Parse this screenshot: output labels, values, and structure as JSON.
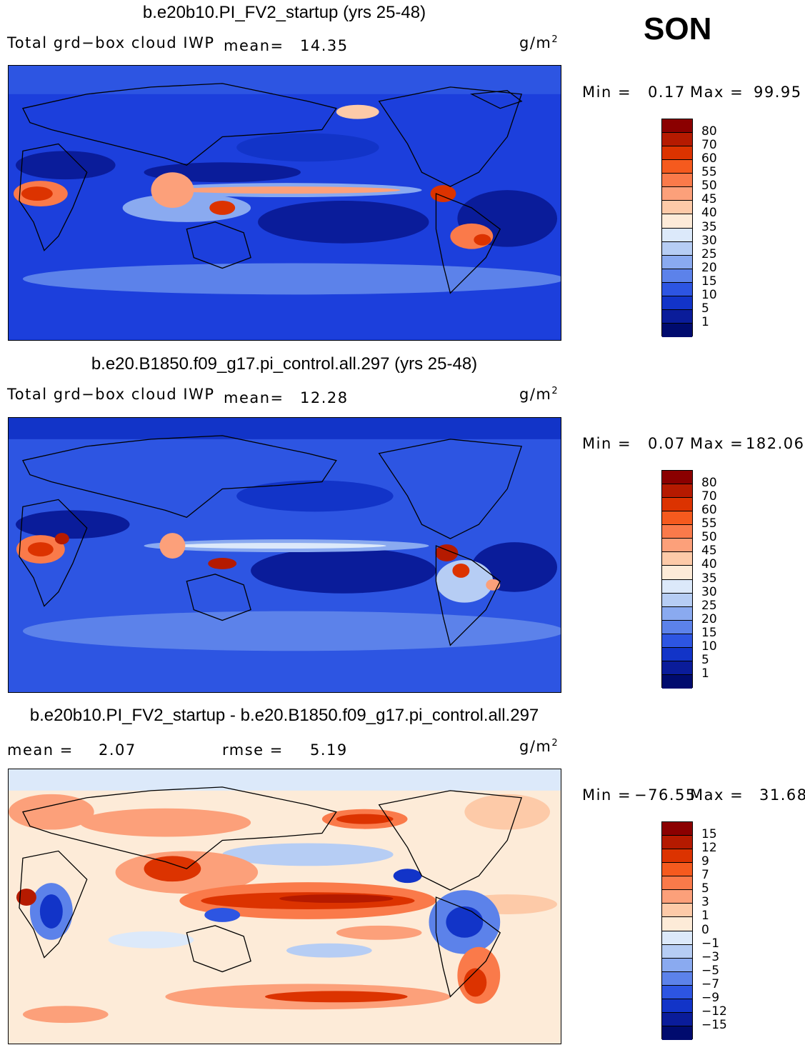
{
  "season": "SON",
  "units_main": "g/m",
  "units_sup": "2",
  "panels": [
    {
      "title": "b.e20b10.PI_FV2_startup (yrs 25-48)",
      "variable": "Total grd−box cloud IWP",
      "mean_label": "mean=",
      "mean_value": "14.35",
      "min_label": "Min =",
      "min_value": "0.17",
      "max_label": "Max =",
      "max_value": "99.95",
      "colorbar": {
        "levels": [
          "80",
          "70",
          "60",
          "55",
          "50",
          "45",
          "40",
          "35",
          "30",
          "25",
          "20",
          "15",
          "10",
          "5",
          "1"
        ],
        "colors": [
          "#8b0000",
          "#b51a00",
          "#dc3300",
          "#f55a1e",
          "#fa7a4a",
          "#fca07a",
          "#fdcaa8",
          "#fdebd8",
          "#dce9fa",
          "#b6cdf4",
          "#8aaaf0",
          "#5c82ea",
          "#2d55e2",
          "#1234c8",
          "#0a1c9a",
          "#000b6e"
        ]
      }
    },
    {
      "title": "b.e20.B1850.f09_g17.pi_control.all.297 (yrs 25-48)",
      "variable": "Total grd−box cloud IWP",
      "mean_label": "mean=",
      "mean_value": "12.28",
      "min_label": "Min =",
      "min_value": "0.07",
      "max_label": "Max =",
      "max_value": "182.06",
      "colorbar": {
        "levels": [
          "80",
          "70",
          "60",
          "55",
          "50",
          "45",
          "40",
          "35",
          "30",
          "25",
          "20",
          "15",
          "10",
          "5",
          "1"
        ],
        "colors": [
          "#8b0000",
          "#b51a00",
          "#dc3300",
          "#f55a1e",
          "#fa7a4a",
          "#fca07a",
          "#fdcaa8",
          "#fdebd8",
          "#dce9fa",
          "#b6cdf4",
          "#8aaaf0",
          "#5c82ea",
          "#2d55e2",
          "#1234c8",
          "#0a1c9a",
          "#000b6e"
        ]
      }
    },
    {
      "title": "b.e20b10.PI_FV2_startup - b.e20.B1850.f09_g17.pi_control.all.297",
      "mean_label": "mean =",
      "mean_value": "2.07",
      "rmse_label": "rmse =",
      "rmse_value": "5.19",
      "min_label": "Min =",
      "min_value": "−76.55",
      "max_label": "Max =",
      "max_value": "31.68",
      "colorbar": {
        "levels": [
          "15",
          "12",
          "9",
          "7",
          "5",
          "3",
          "1",
          "0",
          "−1",
          "−3",
          "−5",
          "−7",
          "−9",
          "−12",
          "−15"
        ],
        "colors": [
          "#8b0000",
          "#b51a00",
          "#dc3300",
          "#f55a1e",
          "#fa7a4a",
          "#fca07a",
          "#fdcaa8",
          "#fdebd8",
          "#dce9fa",
          "#b6cdf4",
          "#8aaaf0",
          "#5c82ea",
          "#2d55e2",
          "#1234c8",
          "#0a1c9a",
          "#000b6e"
        ]
      }
    }
  ]
}
